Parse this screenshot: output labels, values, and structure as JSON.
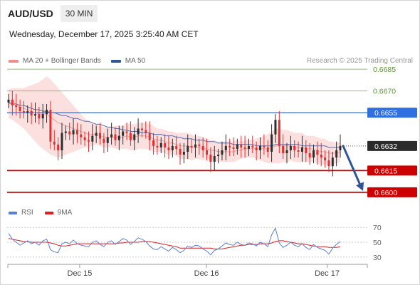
{
  "header": {
    "symbol": "AUD/USD",
    "timeframe": "30 MIN"
  },
  "datetime": "Wednesday, December 17, 2025 3:25:40 AM CET",
  "legend": [
    {
      "label": "MA 20 + Bollinger Bands",
      "color": "#f28b8b"
    },
    {
      "label": "MA 50",
      "color": "#2f5597"
    }
  ],
  "credit": "Research © 2025 Trading Central",
  "rsi_legend": [
    {
      "label": "RSI",
      "color": "#5b7fd6"
    },
    {
      "label": "9MA",
      "color": "#e02020"
    }
  ],
  "colors": {
    "candle_up": "#2e2e2e",
    "candle_down": "#e03030",
    "bb_fill": "#fbd5d5",
    "ma20": "#f0a0a0",
    "ma50": "#5a6fa8",
    "support": "#cc0000",
    "resistance_blue": "#2f6fe0",
    "resistance_green": "#8fc070",
    "forecast_arrow": "#2f5597"
  },
  "chart_data": [
    {
      "type": "candlestick",
      "title": "",
      "y_range": [
        0.6595,
        0.669
      ],
      "x_ticks": [
        "Dec 15",
        "Dec 16",
        "Dec 17"
      ],
      "last_price": {
        "value": "0.6632",
        "price": 0.6632
      },
      "levels": [
        {
          "label": "0.6685",
          "price": 0.6685,
          "style": "green-thin"
        },
        {
          "label": "0.6670",
          "price": 0.667,
          "style": "green-thin"
        },
        {
          "label": "0.6655",
          "price": 0.6655,
          "style": "blue"
        },
        {
          "label": "0.6615",
          "price": 0.6615,
          "style": "red"
        },
        {
          "label": "0.6600",
          "price": 0.66,
          "style": "red"
        }
      ],
      "forecast": {
        "from_price": 0.6632,
        "to_price": 0.66,
        "direction": "down"
      },
      "closes": [
        0.6664,
        0.666,
        0.6659,
        0.6656,
        0.6655,
        0.6656,
        0.6653,
        0.6654,
        0.6651,
        0.6654,
        0.6657,
        0.6635,
        0.6633,
        0.6629,
        0.6641,
        0.6642,
        0.664,
        0.6643,
        0.664,
        0.6638,
        0.6636,
        0.6635,
        0.6639,
        0.6641,
        0.6637,
        0.6634,
        0.6638,
        0.664,
        0.6636,
        0.6639,
        0.6642,
        0.6641,
        0.6636,
        0.664,
        0.6644,
        0.6643,
        0.6641,
        0.6636,
        0.6632,
        0.6631,
        0.6634,
        0.6631,
        0.6629,
        0.6632,
        0.663,
        0.6626,
        0.6628,
        0.6632,
        0.6631,
        0.6633,
        0.6632,
        0.6629,
        0.6626,
        0.6621,
        0.6625,
        0.6626,
        0.6629,
        0.6632,
        0.6631,
        0.663,
        0.6633,
        0.6631,
        0.663,
        0.6632,
        0.6631,
        0.6629,
        0.6632,
        0.6631,
        0.6628,
        0.664,
        0.665,
        0.6632,
        0.6627,
        0.6629,
        0.6632,
        0.6629,
        0.6628,
        0.6631,
        0.6627,
        0.6624,
        0.6629,
        0.6626,
        0.6624,
        0.6622,
        0.6618,
        0.6624,
        0.6629,
        0.6632
      ],
      "ma20": [
        0.6661,
        0.6661,
        0.666,
        0.6659,
        0.6658,
        0.6657,
        0.6656,
        0.6655,
        0.6654,
        0.6654,
        0.6654,
        0.6652,
        0.665,
        0.6648,
        0.6647,
        0.6646,
        0.6645,
        0.6644,
        0.6643,
        0.6642,
        0.6641,
        0.664,
        0.664,
        0.664,
        0.6639,
        0.6638,
        0.6638,
        0.6638,
        0.6638,
        0.6638,
        0.6638,
        0.6639,
        0.6638,
        0.6638,
        0.6639,
        0.6639,
        0.6639,
        0.6638,
        0.6637,
        0.6636,
        0.6636,
        0.6635,
        0.6634,
        0.6634,
        0.6633,
        0.6632,
        0.6632,
        0.6632,
        0.6631,
        0.6631,
        0.6631,
        0.663,
        0.663,
        0.6629,
        0.6629,
        0.6628,
        0.6628,
        0.6628,
        0.6628,
        0.6628,
        0.6629,
        0.6629,
        0.663,
        0.663,
        0.663,
        0.663,
        0.663,
        0.663,
        0.663,
        0.6631,
        0.6632,
        0.6632,
        0.6632,
        0.6632,
        0.6632,
        0.6631,
        0.6631,
        0.6631,
        0.663,
        0.663,
        0.663,
        0.6629,
        0.6628,
        0.6628,
        0.6627,
        0.6627,
        0.6627,
        0.6628
      ],
      "ma50": [
        0.6662,
        0.6661,
        0.6661,
        0.666,
        0.666,
        0.6659,
        0.6658,
        0.6657,
        0.6657,
        0.6656,
        0.6656,
        0.6655,
        0.6655,
        0.6654,
        0.6653,
        0.6653,
        0.6652,
        0.6651,
        0.6651,
        0.665,
        0.6649,
        0.6649,
        0.6648,
        0.6647,
        0.6647,
        0.6646,
        0.6645,
        0.6645,
        0.6644,
        0.6644,
        0.6643,
        0.6643,
        0.6642,
        0.6642,
        0.6642,
        0.6641,
        0.6641,
        0.6641,
        0.664,
        0.664,
        0.664,
        0.6639,
        0.6639,
        0.6639,
        0.6638,
        0.6638,
        0.6637,
        0.6637,
        0.6637,
        0.6636,
        0.6636,
        0.6636,
        0.6635,
        0.6635,
        0.6635,
        0.6634,
        0.6634,
        0.6634,
        0.6634,
        0.6633,
        0.6633,
        0.6633,
        0.6633,
        0.6633,
        0.6633,
        0.6632,
        0.6632,
        0.6632,
        0.6632,
        0.6632,
        0.6633,
        0.6633,
        0.6633,
        0.6633,
        0.6633,
        0.6633,
        0.6633,
        0.6632,
        0.6632,
        0.6632,
        0.6632,
        0.6632,
        0.6632,
        0.6632,
        0.6631,
        0.6631,
        0.6631,
        0.6631
      ],
      "bb_width": [
        0.001,
        0.0011,
        0.0012,
        0.0013,
        0.0014,
        0.0016,
        0.0018,
        0.002,
        0.0022,
        0.0024,
        0.0026,
        0.0026,
        0.0025,
        0.0024,
        0.0022,
        0.002,
        0.0018,
        0.0016,
        0.0014,
        0.0012,
        0.001,
        0.0009,
        0.0008,
        0.0007,
        0.0007,
        0.0007,
        0.0007,
        0.0007,
        0.0008,
        0.0008,
        0.0008,
        0.0009,
        0.0009,
        0.0009,
        0.0009,
        0.0009,
        0.0009,
        0.0009,
        0.0009,
        0.0008,
        0.0008,
        0.0008,
        0.0008,
        0.0008,
        0.0008,
        0.0009,
        0.0009,
        0.0009,
        0.0009,
        0.0008,
        0.0008,
        0.0008,
        0.0007,
        0.0007,
        0.0007,
        0.0007,
        0.0007,
        0.0007,
        0.0007,
        0.0007,
        0.0007,
        0.0006,
        0.0006,
        0.0006,
        0.0006,
        0.0007,
        0.0008,
        0.0009,
        0.001,
        0.0011,
        0.0012,
        0.0012,
        0.0011,
        0.0011,
        0.001,
        0.001,
        0.001,
        0.001,
        0.0009,
        0.0009,
        0.0009,
        0.0009,
        0.0009,
        0.0009,
        0.0008,
        0.0008,
        0.0007,
        0.0007
      ]
    },
    {
      "type": "line",
      "title": "",
      "y_range": [
        25,
        75
      ],
      "y_ticks": [
        "70",
        "50",
        "30"
      ],
      "series": [
        {
          "name": "RSI",
          "values": [
            62,
            54,
            50,
            46,
            49,
            52,
            48,
            50,
            46,
            52,
            54,
            40,
            37,
            36,
            48,
            50,
            48,
            53,
            48,
            46,
            45,
            44,
            50,
            52,
            47,
            44,
            50,
            52,
            47,
            51,
            55,
            53,
            47,
            51,
            56,
            54,
            51,
            45,
            41,
            40,
            44,
            41,
            38,
            43,
            40,
            36,
            39,
            45,
            43,
            46,
            45,
            41,
            38,
            33,
            39,
            41,
            45,
            49,
            47,
            46,
            50,
            47,
            46,
            49,
            48,
            45,
            50,
            48,
            44,
            60,
            69,
            49,
            43,
            46,
            50,
            46,
            44,
            48,
            43,
            40,
            47,
            43,
            41,
            39,
            34,
            42,
            47,
            51
          ]
        },
        {
          "name": "9MA",
          "values": [
            55,
            54,
            53,
            52,
            51,
            51,
            50,
            50,
            50,
            50,
            50,
            49,
            48,
            46,
            45,
            45,
            46,
            47,
            48,
            48,
            48,
            48,
            48,
            48,
            48,
            48,
            48,
            48,
            48,
            49,
            49,
            50,
            50,
            50,
            50,
            51,
            51,
            51,
            50,
            49,
            48,
            47,
            46,
            45,
            44,
            42,
            42,
            42,
            42,
            42,
            42,
            42,
            42,
            42,
            41,
            41,
            41,
            42,
            43,
            44,
            45,
            46,
            46,
            47,
            47,
            47,
            48,
            48,
            48,
            49,
            51,
            52,
            52,
            51,
            50,
            49,
            48,
            48,
            47,
            46,
            45,
            44,
            44,
            44,
            43,
            43,
            43,
            44
          ]
        }
      ]
    }
  ]
}
